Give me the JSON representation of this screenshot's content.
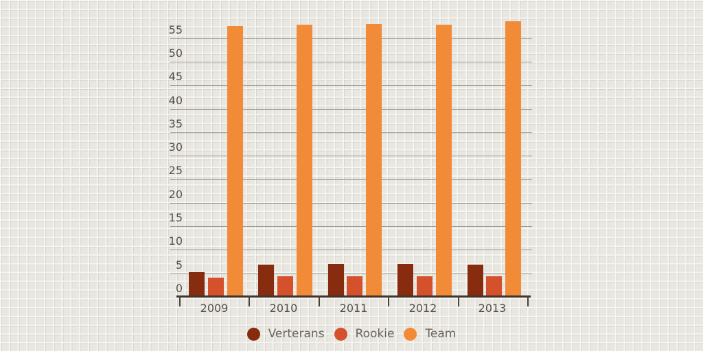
{
  "chart_data": {
    "type": "bar",
    "title": "",
    "xlabel": "",
    "ylabel": "",
    "categories": [
      "2009",
      "2010",
      "2011",
      "2012",
      "2013"
    ],
    "series": [
      {
        "name": "Verterans",
        "color": "#872c0e",
        "values": [
          5.2,
          6.9,
          7.0,
          7.0,
          6.9
        ]
      },
      {
        "name": "Rookie",
        "color": "#d5512b",
        "values": [
          4.1,
          4.3,
          4.3,
          4.3,
          4.4
        ]
      },
      {
        "name": "Team",
        "color": "#f18b38",
        "values": [
          57.6,
          57.9,
          58.0,
          57.9,
          58.6
        ]
      }
    ],
    "yticks": [
      0,
      5,
      10,
      15,
      20,
      25,
      30,
      35,
      40,
      45,
      50,
      55
    ],
    "ylim": [
      0,
      55
    ],
    "grid": true,
    "legend_position": "bottom"
  },
  "colors": {
    "background": "#e9e7e1",
    "gridline": "#9a948b",
    "axis": "#3e362e",
    "axis_label_text": "#564f48",
    "legend_text": "#6b645d"
  }
}
